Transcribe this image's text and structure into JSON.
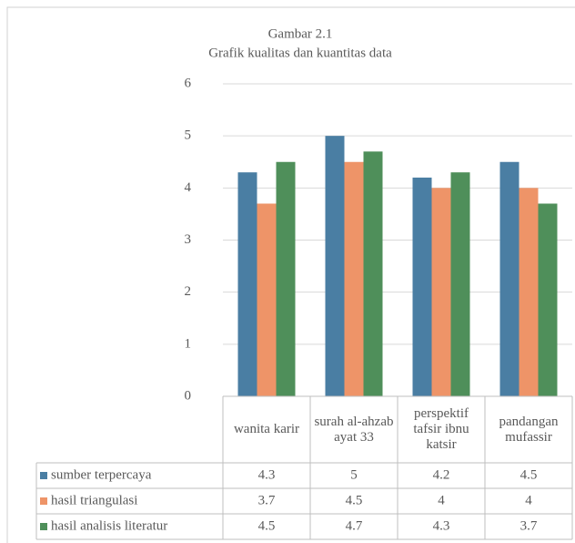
{
  "chart_data": {
    "type": "bar",
    "title": "Gambar 2.1",
    "subtitle": "Grafik kualitas dan kuantitas data",
    "categories": [
      "wanita karir",
      "surah al-ahzab ayat 33",
      "perspektif tafsir ibnu katsir",
      "pandangan mufassir"
    ],
    "series": [
      {
        "name": "sumber terpercaya",
        "color": "#4a7ea3",
        "values": [
          4.3,
          5,
          4.2,
          4.5
        ]
      },
      {
        "name": "hasil triangulasi",
        "color": "#ee9468",
        "values": [
          3.7,
          4.5,
          4,
          4
        ]
      },
      {
        "name": "hasil analisis literatur",
        "color": "#4f8f5a",
        "values": [
          4.5,
          4.7,
          4.3,
          3.7
        ]
      }
    ],
    "ylim": [
      0,
      6
    ],
    "yticks": [
      0,
      1,
      2,
      3,
      4,
      5,
      6
    ],
    "grid": true
  }
}
